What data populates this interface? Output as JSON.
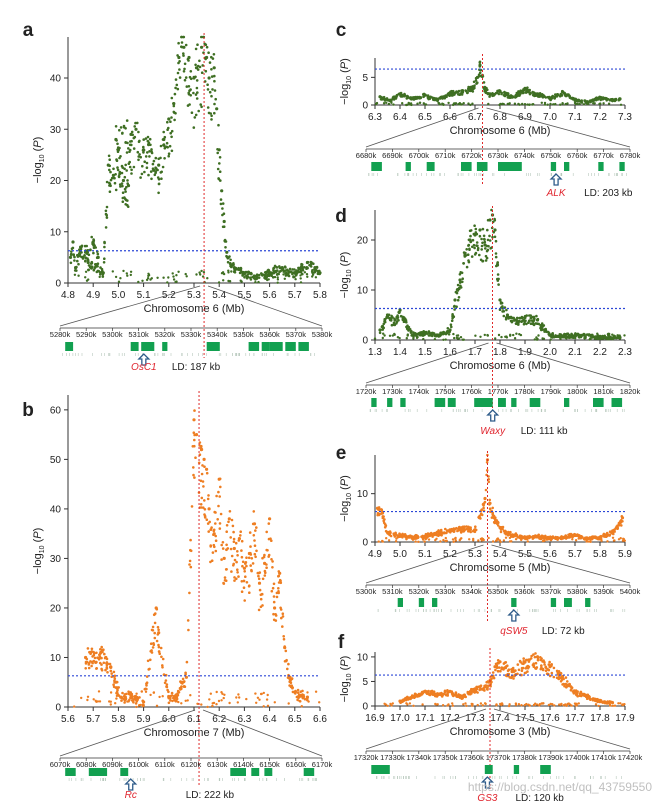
{
  "colors": {
    "green": "#3f6f23",
    "orange": "#ee7e22",
    "threshold": "#2c47d6",
    "lead": "#e02a2a",
    "gene": "#12a050",
    "arrow": "#2f5c8a"
  },
  "watermark": "https://blog.csdn.net/qq_43759550",
  "chart_data": [
    {
      "panel": "a",
      "type": "scatter",
      "series_color": "green",
      "xlabel": "Chromosome 6 (Mb)",
      "ylabel": "−log10 (P)",
      "xlim": [
        4.8,
        5.8
      ],
      "ylim": [
        0,
        48
      ],
      "threshold": 6.3,
      "lead_x": 5.34,
      "xticks": [
        "4.8",
        "4.9",
        "5.0",
        "5.1",
        "5.2",
        "5.3",
        "5.4",
        "5.5",
        "5.6",
        "5.7",
        "5.8"
      ],
      "yticks": [
        0,
        10,
        20,
        30,
        40
      ],
      "points": [
        [
          4.81,
          5
        ],
        [
          4.82,
          8
        ],
        [
          4.83,
          3
        ],
        [
          4.85,
          7
        ],
        [
          4.87,
          6
        ],
        [
          4.9,
          8
        ],
        [
          4.92,
          5
        ],
        [
          4.88,
          4
        ],
        [
          4.94,
          2
        ],
        [
          4.96,
          23
        ],
        [
          4.98,
          21
        ],
        [
          5.0,
          26
        ],
        [
          5.02,
          20
        ],
        [
          5.04,
          19
        ],
        [
          4.99,
          28
        ],
        [
          5.05,
          29
        ],
        [
          5.07,
          30
        ],
        [
          5.1,
          26
        ],
        [
          5.12,
          27
        ],
        [
          5.14,
          22
        ],
        [
          5.16,
          23
        ],
        [
          5.18,
          28
        ],
        [
          5.2,
          32
        ],
        [
          5.22,
          35
        ],
        [
          5.24,
          44
        ],
        [
          5.26,
          46
        ],
        [
          5.28,
          44
        ],
        [
          5.3,
          40
        ],
        [
          5.31,
          42
        ],
        [
          5.33,
          46
        ],
        [
          5.35,
          44
        ],
        [
          5.36,
          40
        ],
        [
          5.38,
          42
        ],
        [
          5.39,
          34
        ],
        [
          5.4,
          26
        ],
        [
          5.41,
          18
        ],
        [
          5.42,
          12
        ],
        [
          5.43,
          6
        ],
        [
          5.46,
          3
        ],
        [
          5.5,
          2
        ],
        [
          5.55,
          1
        ],
        [
          5.6,
          2
        ],
        [
          5.65,
          3
        ],
        [
          5.7,
          2
        ],
        [
          5.75,
          4
        ],
        [
          5.78,
          3
        ],
        [
          5.8,
          2
        ]
      ],
      "genes": {
        "tick_labels": [
          "5280k",
          "5290k",
          "5300k",
          "5310k",
          "5320k",
          "5330k",
          "5340k",
          "5350k",
          "5360k",
          "5370k",
          "5380k"
        ],
        "highlight": "OsC1",
        "ld": "LD: 187 kb",
        "blocks": [
          [
            0.02,
            0.05
          ],
          [
            0.27,
            0.3
          ],
          [
            0.31,
            0.36
          ],
          [
            0.39,
            0.41
          ],
          [
            0.56,
            0.61
          ],
          [
            0.72,
            0.76
          ],
          [
            0.77,
            0.8
          ],
          [
            0.8,
            0.85
          ],
          [
            0.86,
            0.9
          ],
          [
            0.91,
            0.95
          ]
        ],
        "arrow_at": 0.32
      }
    },
    {
      "panel": "b",
      "type": "scatter",
      "series_color": "orange",
      "xlabel": "Chromosome 7 (Mb)",
      "ylabel": "−log10 (P)",
      "xlim": [
        5.6,
        6.6
      ],
      "ylim": [
        0,
        63
      ],
      "threshold": 6.3,
      "lead_x": 6.12,
      "xticks": [
        "5.6",
        "5.7",
        "5.8",
        "5.9",
        "6.0",
        "6.1",
        "6.2",
        "6.3",
        "6.4",
        "6.5",
        "6.6"
      ],
      "yticks": [
        0,
        10,
        20,
        30,
        40,
        50,
        60
      ],
      "points": [
        [
          5.67,
          10
        ],
        [
          5.69,
          11
        ],
        [
          5.71,
          9
        ],
        [
          5.73,
          11
        ],
        [
          5.75,
          10
        ],
        [
          5.77,
          8
        ],
        [
          5.79,
          5
        ],
        [
          5.81,
          2
        ],
        [
          5.85,
          2
        ],
        [
          5.9,
          1
        ],
        [
          5.95,
          20
        ],
        [
          5.96,
          15
        ],
        [
          6.0,
          2
        ],
        [
          6.03,
          2
        ],
        [
          6.05,
          5
        ],
        [
          6.07,
          6
        ],
        [
          6.1,
          58
        ],
        [
          6.11,
          55
        ],
        [
          6.13,
          52
        ],
        [
          6.14,
          50
        ],
        [
          6.15,
          48
        ],
        [
          6.16,
          40
        ],
        [
          6.18,
          35
        ],
        [
          6.2,
          46
        ],
        [
          6.22,
          30
        ],
        [
          6.24,
          38
        ],
        [
          6.26,
          32
        ],
        [
          6.28,
          34
        ],
        [
          6.3,
          28
        ],
        [
          6.32,
          31
        ],
        [
          6.34,
          37
        ],
        [
          6.36,
          25
        ],
        [
          6.38,
          29
        ],
        [
          6.4,
          38
        ],
        [
          6.42,
          20
        ],
        [
          6.44,
          27
        ],
        [
          6.46,
          12
        ],
        [
          6.48,
          6
        ],
        [
          6.5,
          3
        ],
        [
          6.55,
          2
        ]
      ],
      "genes": {
        "tick_labels": [
          "6070k",
          "6080k",
          "6090k",
          "6100k",
          "6110k",
          "6120k",
          "6130k",
          "6140k",
          "6150k",
          "6160k",
          "6170k"
        ],
        "highlight": "Rc",
        "ld": "LD: 222 kb",
        "blocks": [
          [
            0.02,
            0.06
          ],
          [
            0.11,
            0.18
          ],
          [
            0.23,
            0.26
          ],
          [
            0.65,
            0.71
          ],
          [
            0.73,
            0.76
          ],
          [
            0.78,
            0.81
          ],
          [
            0.93,
            0.97
          ]
        ],
        "arrow_at": 0.27
      }
    },
    {
      "panel": "c",
      "type": "scatter",
      "series_color": "green",
      "xlabel": "Chromosome 6 (Mb)",
      "ylabel": "−log10 (P)",
      "xlim": [
        6.3,
        7.3
      ],
      "ylim": [
        0,
        8.5
      ],
      "threshold": 6.5,
      "lead_x": 6.73,
      "xticks": [
        "6.3",
        "6.4",
        "6.5",
        "6.6",
        "6.7",
        "6.8",
        "6.9",
        "7.0",
        "7.1",
        "7.2",
        "7.3"
      ],
      "yticks": [
        0,
        5
      ],
      "points": [
        [
          6.32,
          1.5
        ],
        [
          6.36,
          0.8
        ],
        [
          6.4,
          2
        ],
        [
          6.45,
          1.2
        ],
        [
          6.5,
          1.8
        ],
        [
          6.55,
          1
        ],
        [
          6.6,
          2.2
        ],
        [
          6.65,
          2.6
        ],
        [
          6.69,
          3.2
        ],
        [
          6.71,
          5
        ],
        [
          6.72,
          7.2
        ],
        [
          6.74,
          3
        ],
        [
          6.76,
          2
        ],
        [
          6.8,
          2.5
        ],
        [
          6.85,
          1.5
        ],
        [
          6.9,
          3
        ],
        [
          6.95,
          2
        ],
        [
          7.0,
          1.2
        ],
        [
          7.05,
          2.4
        ],
        [
          7.1,
          1
        ],
        [
          7.15,
          0.6
        ],
        [
          7.2,
          1.4
        ],
        [
          7.25,
          0.9
        ],
        [
          7.28,
          1.1
        ]
      ],
      "genes": {
        "tick_labels": [
          "6680k",
          "6690k",
          "6700k",
          "6710k",
          "6720k",
          "6730k",
          "6740k",
          "6750k",
          "6760k",
          "6770k",
          "6780k"
        ],
        "highlight": "ALK",
        "ld": "LD: 203 kb",
        "blocks": [
          [
            0.02,
            0.06
          ],
          [
            0.15,
            0.17
          ],
          [
            0.23,
            0.26
          ],
          [
            0.36,
            0.4
          ],
          [
            0.42,
            0.46
          ],
          [
            0.5,
            0.59
          ],
          [
            0.7,
            0.72
          ],
          [
            0.75,
            0.77
          ],
          [
            0.88,
            0.9
          ],
          [
            0.96,
            0.98
          ]
        ],
        "arrow_at": 0.72
      }
    },
    {
      "panel": "d",
      "type": "scatter",
      "series_color": "green",
      "xlabel": "Chromosome 6 (Mb)",
      "ylabel": "−log10 (P)",
      "xlim": [
        1.3,
        2.3
      ],
      "ylim": [
        0,
        26
      ],
      "threshold": 6.3,
      "lead_x": 1.77,
      "xticks": [
        "1.3",
        "1.4",
        "1.5",
        "1.6",
        "1.7",
        "1.8",
        "1.9",
        "2.0",
        "2.1",
        "2.2",
        "2.3"
      ],
      "yticks": [
        0,
        10,
        20
      ],
      "points": [
        [
          1.32,
          2
        ],
        [
          1.35,
          5
        ],
        [
          1.38,
          4
        ],
        [
          1.4,
          6
        ],
        [
          1.42,
          4
        ],
        [
          1.45,
          1
        ],
        [
          1.5,
          1.5
        ],
        [
          1.55,
          1
        ],
        [
          1.6,
          2
        ],
        [
          1.62,
          8
        ],
        [
          1.64,
          12
        ],
        [
          1.66,
          17
        ],
        [
          1.68,
          20
        ],
        [
          1.7,
          21
        ],
        [
          1.72,
          22
        ],
        [
          1.74,
          19
        ],
        [
          1.76,
          24
        ],
        [
          1.77,
          25
        ],
        [
          1.78,
          22
        ],
        [
          1.79,
          15
        ],
        [
          1.8,
          8
        ],
        [
          1.83,
          5
        ],
        [
          1.86,
          4
        ],
        [
          1.9,
          4.5
        ],
        [
          1.95,
          4
        ],
        [
          2.0,
          1
        ],
        [
          2.05,
          0.8
        ],
        [
          2.1,
          1
        ],
        [
          2.2,
          0.6
        ],
        [
          2.28,
          0.5
        ]
      ],
      "genes": {
        "tick_labels": [
          "1720k",
          "1730k",
          "1740k",
          "1750k",
          "1760k",
          "1770k",
          "1780k",
          "1790k",
          "1800k",
          "1810k",
          "1820k"
        ],
        "highlight": "Waxy",
        "ld": "LD: 111 kb",
        "blocks": [
          [
            0.02,
            0.04
          ],
          [
            0.08,
            0.1
          ],
          [
            0.13,
            0.15
          ],
          [
            0.26,
            0.3
          ],
          [
            0.31,
            0.34
          ],
          [
            0.41,
            0.48
          ],
          [
            0.5,
            0.53
          ],
          [
            0.55,
            0.57
          ],
          [
            0.62,
            0.66
          ],
          [
            0.75,
            0.77
          ],
          [
            0.86,
            0.9
          ],
          [
            0.93,
            0.97
          ]
        ],
        "arrow_at": 0.48
      }
    },
    {
      "panel": "e",
      "type": "scatter",
      "series_color": "orange",
      "xlabel": "Chromosome 5 (Mb)",
      "ylabel": "−log10 (P)",
      "xlim": [
        4.9,
        5.9
      ],
      "ylim": [
        0,
        18
      ],
      "threshold": 6.3,
      "lead_x": 5.35,
      "xticks": [
        "4.9",
        "5.0",
        "5.1",
        "5.2",
        "5.3",
        "5.4",
        "5.5",
        "5.6",
        "5.7",
        "5.8",
        "5.9"
      ],
      "yticks": [
        0,
        10
      ],
      "points": [
        [
          4.91,
          7
        ],
        [
          4.93,
          6
        ],
        [
          4.95,
          2
        ],
        [
          5.0,
          1.5
        ],
        [
          5.05,
          1
        ],
        [
          5.1,
          1.2
        ],
        [
          5.15,
          2
        ],
        [
          5.2,
          2.5
        ],
        [
          5.25,
          3
        ],
        [
          5.3,
          2.5
        ],
        [
          5.34,
          9
        ],
        [
          5.35,
          17
        ],
        [
          5.36,
          8
        ],
        [
          5.38,
          5
        ],
        [
          5.4,
          3
        ],
        [
          5.45,
          1.5
        ],
        [
          5.5,
          1
        ],
        [
          5.55,
          1.2
        ],
        [
          5.6,
          0.8
        ],
        [
          5.65,
          1
        ],
        [
          5.7,
          1.5
        ],
        [
          5.75,
          0.7
        ],
        [
          5.8,
          1
        ],
        [
          5.85,
          2
        ],
        [
          5.88,
          4
        ],
        [
          5.89,
          5
        ]
      ],
      "genes": {
        "tick_labels": [
          "5300k",
          "5310k",
          "5320k",
          "5330k",
          "5340k",
          "5350k",
          "5360k",
          "5370k",
          "5380k",
          "5390k",
          "5400k"
        ],
        "highlight": "qSW5",
        "ld": "LD: 72 kb",
        "blocks": [
          [
            0.12,
            0.14
          ],
          [
            0.2,
            0.22
          ],
          [
            0.25,
            0.27
          ],
          [
            0.55,
            0.57
          ],
          [
            0.7,
            0.72
          ],
          [
            0.75,
            0.78
          ],
          [
            0.83,
            0.85
          ]
        ],
        "arrow_at": 0.56
      }
    },
    {
      "panel": "f",
      "type": "scatter",
      "series_color": "orange",
      "xlabel": "Chromosome 3 (Mb)",
      "ylabel": "−log10 (P)",
      "xlim": [
        16.9,
        17.9
      ],
      "ylim": [
        0,
        11
      ],
      "threshold": 6.3,
      "lead_x": 17.36,
      "xticks": [
        "16.9",
        "17.0",
        "17.1",
        "17.2",
        "17.3",
        "17.4",
        "17.5",
        "17.6",
        "17.7",
        "17.8",
        "17.9"
      ],
      "yticks": [
        0,
        5,
        10
      ],
      "points": [
        [
          17.0,
          1
        ],
        [
          17.05,
          2
        ],
        [
          17.1,
          3
        ],
        [
          17.15,
          2.5
        ],
        [
          17.2,
          3
        ],
        [
          17.25,
          2
        ],
        [
          17.3,
          3.5
        ],
        [
          17.34,
          4
        ],
        [
          17.36,
          5
        ],
        [
          17.38,
          8
        ],
        [
          17.4,
          9
        ],
        [
          17.45,
          7
        ],
        [
          17.5,
          9
        ],
        [
          17.55,
          10
        ],
        [
          17.6,
          8
        ],
        [
          17.65,
          6
        ],
        [
          17.7,
          3
        ],
        [
          17.75,
          2
        ],
        [
          17.8,
          1
        ],
        [
          17.85,
          0.7
        ]
      ],
      "genes": {
        "tick_labels": [
          "17320k",
          "17330k",
          "17340k",
          "17350k",
          "17360k",
          "17370k",
          "17380k",
          "17390k",
          "17400k",
          "17410k",
          "17420k"
        ],
        "highlight": "GS3",
        "ld": "LD: 120 kb",
        "blocks": [
          [
            0.02,
            0.09
          ],
          [
            0.45,
            0.48
          ],
          [
            0.56,
            0.58
          ],
          [
            0.66,
            0.7
          ]
        ],
        "arrow_at": 0.46
      }
    }
  ]
}
